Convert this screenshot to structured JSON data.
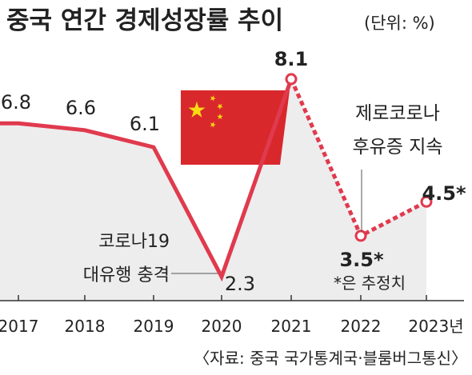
{
  "chart_data": {
    "type": "line",
    "title": "중국 연간 경제성장률 추이",
    "unit_note": "(단위: %)",
    "categories": [
      "2017",
      "2018",
      "2019",
      "2020",
      "2021",
      "2022",
      "2023년"
    ],
    "series": [
      {
        "values": [
          6.8,
          6.6,
          6.1,
          2.3,
          8.1,
          3.5,
          4.5
        ]
      }
    ],
    "value_labels": [
      "6.8",
      "6.6",
      "6.1",
      "2.3",
      "8.1",
      "3.5*",
      "4.5*"
    ],
    "estimated_from_index": 5,
    "ylim": [
      0,
      9
    ],
    "grid": false,
    "annotations": {
      "covid_line1": "코로나19",
      "covid_line2": "대유행 충격",
      "zero_covid_line1": "제로코로나",
      "zero_covid_line2": "후유증 지속",
      "estimate_note": "*은 추정치"
    },
    "source": "〈자료: 중국 국가통계국·블룸버그통신〉",
    "colors": {
      "line": "#e03a4e",
      "area": "#ededed",
      "flag_red": "#d9282c",
      "flag_star": "#f6dd12",
      "text": "#222222",
      "axis": "#333333"
    },
    "icons": [
      "china-flag-icon"
    ]
  }
}
